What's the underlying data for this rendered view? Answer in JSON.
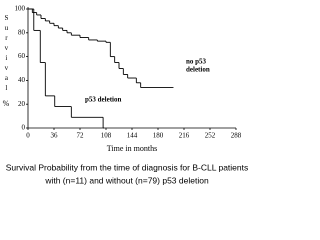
{
  "chart_data": {
    "type": "step",
    "y_label_letters": "Survival",
    "y_label_unit": "%",
    "x_label": "Time in months",
    "caption": [
      "Survival Probability from the time of diagnosis for B-CLL patients",
      "with (n=11) and without (n=79) p53 deletion"
    ],
    "xlim": [
      0,
      288
    ],
    "xticks": [
      0,
      36,
      72,
      108,
      144,
      180,
      216,
      252,
      288
    ],
    "ylim": [
      0,
      100
    ],
    "yticks": [
      0,
      20,
      40,
      60,
      80,
      100
    ],
    "series": [
      {
        "name": "no p53 deletion",
        "label_lines": [
          "no p53",
          "deletion"
        ],
        "color": "#000000",
        "x": [
          0,
          6,
          12,
          18,
          24,
          30,
          36,
          42,
          48,
          54,
          60,
          72,
          84,
          96,
          108,
          114,
          120,
          126,
          132,
          138,
          150,
          156,
          200
        ],
        "values": [
          100,
          97,
          95,
          92,
          90,
          88,
          86,
          84,
          82,
          80,
          78,
          76,
          74,
          73,
          72,
          60,
          55,
          50,
          45,
          42,
          38,
          34,
          34
        ]
      },
      {
        "name": "p53 deletion",
        "label_lines": [
          "p53 deletion"
        ],
        "color": "#000000",
        "x": [
          0,
          8,
          17,
          24,
          37,
          60,
          104
        ],
        "values": [
          100,
          82,
          55,
          27,
          18,
          9,
          0
        ]
      }
    ]
  }
}
